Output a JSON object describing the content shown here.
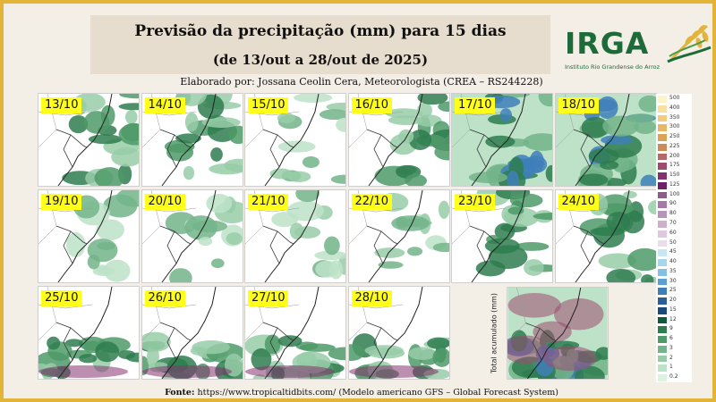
{
  "title": "Previsão da precipitação (mm) para 15 dias",
  "subtitle": "(de 13/out a 28/out de 2025)",
  "author": "Elaborado por: Jossana Ceolin Cera, Meteorologista (CREA – RS244228)",
  "logo": {
    "name": "IRGA",
    "subtitle": "Instituto Rio Grandense do Arroz"
  },
  "panels": [
    {
      "date": "13/10"
    },
    {
      "date": "14/10"
    },
    {
      "date": "15/10"
    },
    {
      "date": "16/10"
    },
    {
      "date": "17/10"
    },
    {
      "date": "18/10"
    },
    {
      "date": "19/10"
    },
    {
      "date": "20/10"
    },
    {
      "date": "21/10"
    },
    {
      "date": "22/10"
    },
    {
      "date": "23/10"
    },
    {
      "date": "24/10"
    },
    {
      "date": "25/10"
    },
    {
      "date": "26/10"
    },
    {
      "date": "27/10"
    },
    {
      "date": "28/10"
    }
  ],
  "total_label": "Total acumulado (mm)",
  "legend": {
    "labels": [
      "500",
      "400",
      "350",
      "300",
      "250",
      "225",
      "200",
      "175",
      "150",
      "125",
      "100",
      "90",
      "80",
      "70",
      "60",
      "50",
      "45",
      "40",
      "35",
      "30",
      "25",
      "20",
      "15",
      "12",
      "9",
      "6",
      "3",
      "2",
      "1",
      "0.2"
    ],
    "colors": [
      "#fdf3c8",
      "#f8e1a0",
      "#f2cc7a",
      "#e7b766",
      "#dba25a",
      "#cd8b5c",
      "#b56a6a",
      "#9e4a6f",
      "#85316f",
      "#6f1f6a",
      "#8d5c8f",
      "#a57aa5",
      "#b895b8",
      "#ccb0cc",
      "#ddc8dd",
      "#ebdceb",
      "#c9e6f5",
      "#a8d4ee",
      "#84bfe4",
      "#5e9fd2",
      "#3f7fb8",
      "#2b5f98",
      "#184a7a",
      "#0f5a3a",
      "#2e7d4f",
      "#4f9a68",
      "#73b48a",
      "#98cca8",
      "#bde2c8",
      "#def2e4"
    ]
  },
  "footer": {
    "label": "Fonte:",
    "text": " https://www.tropicaltidbits.com/ (Modelo americano GFS – Global Forecast System)"
  }
}
